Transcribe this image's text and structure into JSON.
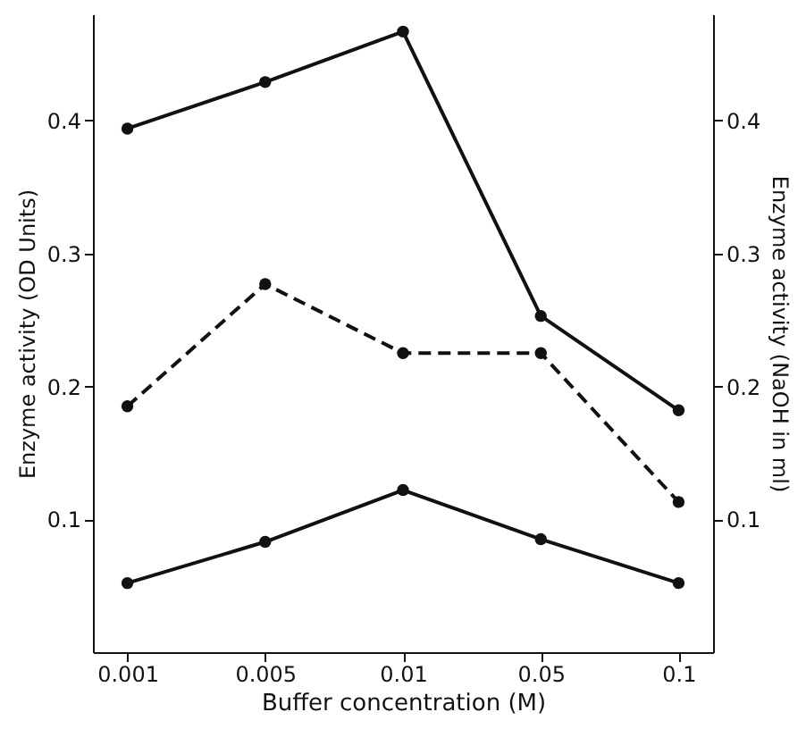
{
  "chart_data": {
    "type": "line",
    "xlabel": "Buffer concentration (M)",
    "ylabel": "Enzyme activity (OD Units)",
    "y2label": "Enzyme activity (NaOH in ml)",
    "categories": [
      "0.001",
      "0.005",
      "0.01",
      "0.05",
      "0.1"
    ],
    "series": [
      {
        "color": "#111111",
        "line_style": "solid",
        "values": [
          0.394,
          0.429,
          0.467,
          0.253,
          0.182
        ]
      },
      {
        "color": "#111111",
        "line_style": "dashed",
        "axis": "y2",
        "values": [
          0.185,
          0.277,
          0.225,
          0.225,
          0.113
        ]
      },
      {
        "color": "#111111",
        "line_style": "solid",
        "values": [
          0.052,
          0.083,
          0.122,
          0.085,
          0.052
        ]
      }
    ],
    "marker": "circle",
    "grid": false,
    "ylim": [
      0,
      0.48
    ],
    "yticks": [
      0.1,
      0.2,
      0.3,
      0.4
    ],
    "y2lim": [
      0,
      0.48
    ],
    "y2ticks": [
      0.1,
      0.2,
      0.3,
      0.4
    ]
  }
}
